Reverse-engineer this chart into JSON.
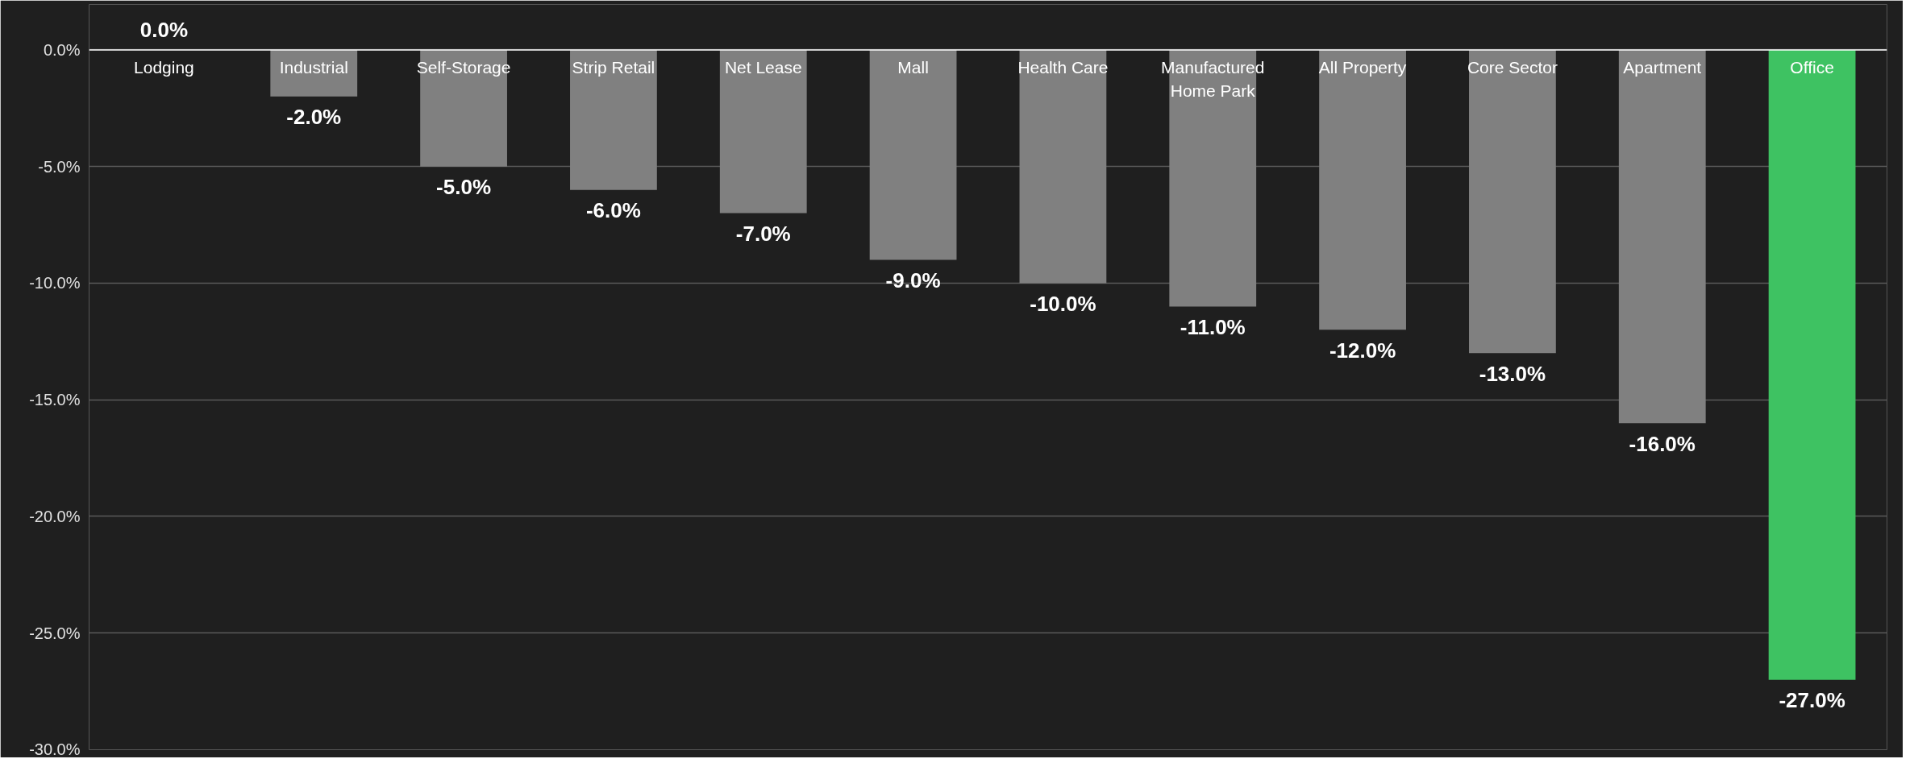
{
  "chart_data": {
    "type": "bar",
    "categories": [
      "Lodging",
      "Industrial",
      "Self-Storage",
      "Strip Retail",
      "Net Lease",
      "Mall",
      "Health Care",
      "Manufactured Home Park",
      "All Property",
      "Core Sector",
      "Apartment",
      "Office"
    ],
    "values": [
      0,
      -2,
      -5,
      -6,
      -7,
      -9,
      -10,
      -11,
      -12,
      -13,
      -16,
      -27
    ],
    "colors": [
      "#808080",
      "#808080",
      "#808080",
      "#808080",
      "#808080",
      "#808080",
      "#808080",
      "#808080",
      "#808080",
      "#808080",
      "#808080",
      "#3ec262"
    ],
    "value_labels": [
      "0.0%",
      "-2.0%",
      "-5.0%",
      "-6.0%",
      "-7.0%",
      "-9.0%",
      "-10.0%",
      "-11.0%",
      "-12.0%",
      "-13.0%",
      "-16.0%",
      "-27.0%"
    ],
    "ylim": [
      -30,
      0
    ],
    "yticks": [
      {
        "value": 0,
        "label": "0.0%"
      },
      {
        "value": -5,
        "label": "-5.0%"
      },
      {
        "value": -10,
        "label": "-10.0%"
      },
      {
        "value": -15,
        "label": "-15.0%"
      },
      {
        "value": -20,
        "label": "-20.0%"
      },
      {
        "value": -25,
        "label": "-25.0%"
      },
      {
        "value": -30,
        "label": "-30.0%"
      }
    ],
    "grid": "y"
  }
}
